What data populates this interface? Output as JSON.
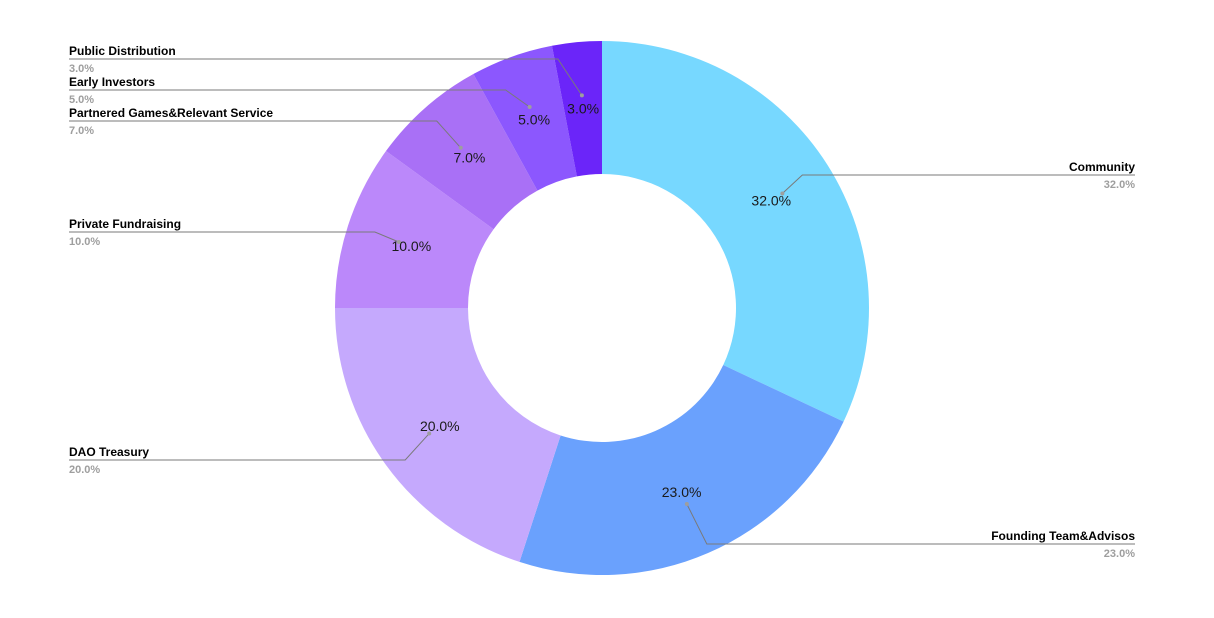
{
  "chart_data": {
    "type": "pie",
    "variant": "donut",
    "slices": [
      {
        "label": "Community",
        "value": 32.0,
        "value_label": "32.0%",
        "color": "#77d8ff"
      },
      {
        "label": "Founding Team&Advisos",
        "value": 23.0,
        "value_label": "23.0%",
        "color": "#6aa1fd"
      },
      {
        "label": "DAO Treasury",
        "value": 20.0,
        "value_label": "20.0%",
        "color": "#c5a9fd"
      },
      {
        "label": "Private Fundraising",
        "value": 10.0,
        "value_label": "10.0%",
        "color": "#bb88fa"
      },
      {
        "label": "Partnered Games&Relevant Service",
        "value": 7.0,
        "value_label": "7.0%",
        "color": "#a970f6"
      },
      {
        "label": "Early Investors",
        "value": 5.0,
        "value_label": "5.0%",
        "color": "#8c57fe"
      },
      {
        "label": "Public Distribution",
        "value": 3.0,
        "value_label": "3.0%",
        "color": "#6b25f9"
      }
    ],
    "start_angle": "12 o'clock",
    "direction": "clockwise",
    "legend": "callout labels with leader lines"
  }
}
